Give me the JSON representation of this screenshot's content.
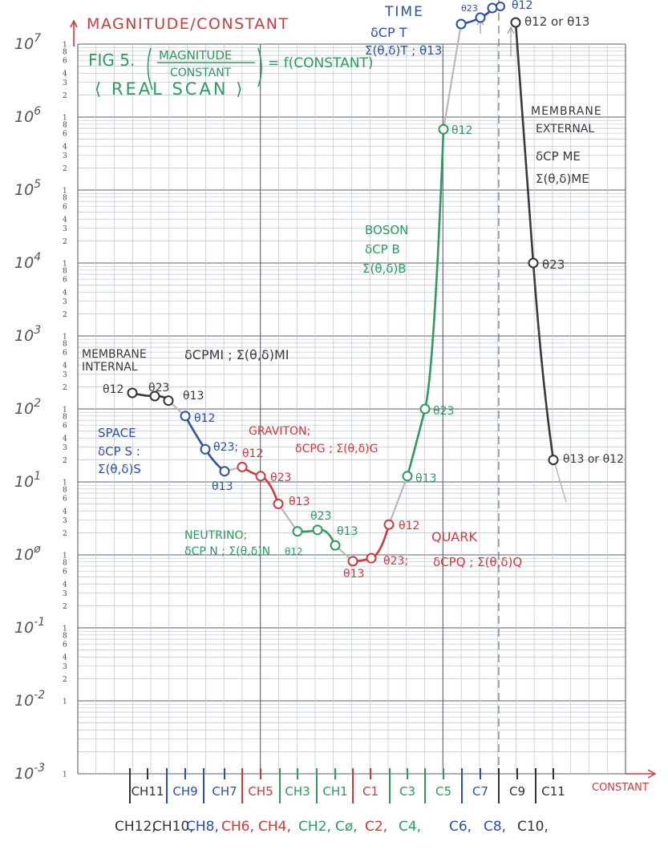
{
  "chart_data": {
    "type": "line",
    "title": "FIG 5. (MAGNITUDE / CONSTANT) = f(CONSTANT)",
    "subtitle": "<REAL SCAN>",
    "xlabel": "CONSTANT",
    "ylabel": "MAGNITUDE/CONSTANT",
    "yscale": "log",
    "ylim": [
      0.001,
      10000000
    ],
    "grid": true,
    "y_decade_labels": [
      "107",
      "106",
      "105",
      "104",
      "103",
      "102",
      "101",
      "10ø",
      "10-1",
      "10-2",
      "10-3"
    ],
    "y_minor_tick_labels": [
      "1",
      "8",
      "6",
      "4",
      "3",
      "2"
    ],
    "x_top_labels": [
      {
        "label": "CH11",
        "color": "#333333"
      },
      {
        "label": "CH9",
        "color": "#2a4fb0"
      },
      {
        "label": "CH7",
        "color": "#2a4fb0"
      },
      {
        "label": "CH5",
        "color": "#d0393b"
      },
      {
        "label": "CH3",
        "color": "#2e9a5b"
      },
      {
        "label": "CH1",
        "color": "#2e9a5b"
      },
      {
        "label": "C1",
        "color": "#d0393b"
      },
      {
        "label": "C3",
        "color": "#2e9a5b"
      },
      {
        "label": "C5",
        "color": "#2e9a5b"
      },
      {
        "label": "C7",
        "color": "#2a4fb0"
      },
      {
        "label": "C9",
        "color": "#333333"
      },
      {
        "label": "C11",
        "color": "#333333"
      }
    ],
    "x_bottom_labels": [
      {
        "label": "CH12,",
        "color": "#333333"
      },
      {
        "label": "CH10,",
        "color": "#333333"
      },
      {
        "label": "CH8,",
        "color": "#2a4fb0"
      },
      {
        "label": "CH6,",
        "color": "#d0393b"
      },
      {
        "label": "CH4,",
        "color": "#d0393b"
      },
      {
        "label": "CH2,",
        "color": "#2e9a5b"
      },
      {
        "label": "Cø,",
        "color": "#2e9a5b"
      },
      {
        "label": "C2,",
        "color": "#d0393b"
      },
      {
        "label": "C4,",
        "color": "#2e9a5b"
      },
      {
        "label": "C6,",
        "color": "#2a4fb0"
      },
      {
        "label": "C8,",
        "color": "#2a4fb0"
      },
      {
        "label": "C10,",
        "color": "#333333"
      }
    ],
    "series": [
      {
        "name": "MEMBRANE INTERNAL",
        "formula": "δCP MI ; Σ(θ,δ)MI",
        "color": "#3a3a3a",
        "points": [
          {
            "x": "CH12",
            "y": 166,
            "label": "θ12"
          },
          {
            "x": "CH11",
            "y": 150,
            "label": "θ23"
          },
          {
            "x": "CH10",
            "y": 130,
            "label": "θ13"
          }
        ]
      },
      {
        "name": "SPACE",
        "formula": "δCP S : Σ(θ,δ)S",
        "color": "#2a4fb0",
        "points": [
          {
            "x": "CH9",
            "y": 80,
            "label": "θ12"
          },
          {
            "x": "CH8",
            "y": 28,
            "label": "θ23;"
          },
          {
            "x": "CH7",
            "y": 14,
            "label": "θ13"
          }
        ]
      },
      {
        "name": "GRAVITON",
        "formula": "δCP G ; Σ(θ,δ)G",
        "color": "#d0393b",
        "points": [
          {
            "x": "CH6",
            "y": 16,
            "label": "θ12"
          },
          {
            "x": "CH5",
            "y": 12,
            "label": "θ23"
          },
          {
            "x": "CH4",
            "y": 5,
            "label": "θ13"
          }
        ]
      },
      {
        "name": "NEUTRINO",
        "formula": "δCP N ; Σ(θ,δ)N",
        "color": "#2e9a5b",
        "points": [
          {
            "x": "CH3",
            "y": 2.1,
            "label": "θ12"
          },
          {
            "x": "CH2",
            "y": 2.2,
            "label": "θ23"
          },
          {
            "x": "CH1",
            "y": 1.35,
            "label": "θ13"
          }
        ]
      },
      {
        "name": "QUARK",
        "formula": "δCP Q ; Σ(θ,δ)Q",
        "color": "#d0393b",
        "points": [
          {
            "x": "Cø",
            "y": 0.82,
            "label": "θ13"
          },
          {
            "x": "C1",
            "y": 0.9,
            "label": "θ23;"
          },
          {
            "x": "C2",
            "y": 2.6,
            "label": "θ12"
          }
        ]
      },
      {
        "name": "BOSON",
        "formula": "δCP B ; Σ(θ,δ)B",
        "color": "#2e9a5b",
        "points": [
          {
            "x": "C3",
            "y": 12,
            "label": "θ13"
          },
          {
            "x": "C4",
            "y": 100,
            "label": "θ23"
          },
          {
            "x": "C5",
            "y": 680000,
            "label": "θ12"
          }
        ]
      },
      {
        "name": "TIME",
        "formula": "δCP T ; Σ(θ,δ)T ; θ13",
        "color": "#2a4fb0",
        "points": [
          {
            "x": "C6",
            "y": 19000000,
            "label": "θ13"
          },
          {
            "x": "C7",
            "y": 23000000,
            "label": "θ23"
          },
          {
            "x": "C8",
            "y": 32000000,
            "label": "θ12"
          }
        ]
      },
      {
        "name": "MEMBRANE EXTERNAL",
        "formula": "δCP ME ; Σ(θ,δ)ME",
        "color": "#3a3a3a",
        "points": [
          {
            "x": "C9",
            "y": 20000000,
            "label": "θ12 or θ13"
          },
          {
            "x": "C10",
            "y": 10000,
            "label": "θ23"
          },
          {
            "x": "C11",
            "y": 20,
            "label": "θ13 or θ12"
          }
        ]
      }
    ]
  },
  "texts": {
    "ylabel": "MAGNITUDE/CONSTANT",
    "xlabel": "CONSTANT",
    "fig_prefix": "FIG 5.",
    "fig_num": "MAGNITUDE",
    "fig_den": "CONSTANT",
    "fig_rhs": "= f(CONSTANT)",
    "real_scan": "⟨ REAL SCAN ⟩",
    "mi_1": "MEMBRANE",
    "mi_2": "INTERNAL",
    "mi_f": "δCPMI ; Σ(θ,δ)MI",
    "space_1": "SPACE",
    "space_2": "δCP S :",
    "space_3": "Σ(θ,δ)S",
    "grav_1": "GRAVITON;",
    "grav_2": "δCPG ; Σ(θ,δ)G",
    "neu_1": "NEUTRINO;",
    "neu_2": "δCP N ; Σ(θ,δ)N",
    "quark_1": "QUARK",
    "quark_2": "δCPQ ; Σ(θ,δ)Q",
    "boson_1": "BOSON",
    "boson_2": "δCP B",
    "boson_3": "Σ(θ,δ)B",
    "time_1": "TIME",
    "time_2": "δCP T",
    "time_3": "Σ(θ,δ)T ; θ13",
    "me_1": "MEMBRANE",
    "me_2": "EXTERNAL",
    "me_3": "δCP ME",
    "me_4": "Σ(θ,δ)ME",
    "p_mi_12": "θ12",
    "p_mi_23": "θ23",
    "p_mi_13": "θ13",
    "p_s_12": "θ12",
    "p_s_23": "θ23;",
    "p_s_13": "θ13",
    "p_g_12": "θ12",
    "p_g_23": "θ23",
    "p_g_13": "θ13",
    "p_n_12": "θ12",
    "p_n_23": "θ23",
    "p_n_13": "θ13",
    "p_q_13": "θ13",
    "p_q_23": "θ23;",
    "p_q_12": "θ12",
    "p_b_13": "θ13",
    "p_b_23": "θ23",
    "p_b_12": "θ12",
    "p_t_23": "θ23",
    "p_t_12": "θ12",
    "p_me_1": "θ12 or θ13",
    "p_me_2": "θ23",
    "p_me_3": "θ13 or θ12"
  },
  "colors": {
    "black": "#3a3a3a",
    "blue": "#2a4fb0",
    "red": "#d0393b",
    "green": "#2e9a5b",
    "gray": "#b8b8b8",
    "grid": "#b9c4d6",
    "grid_major": "#5a5f6a"
  }
}
